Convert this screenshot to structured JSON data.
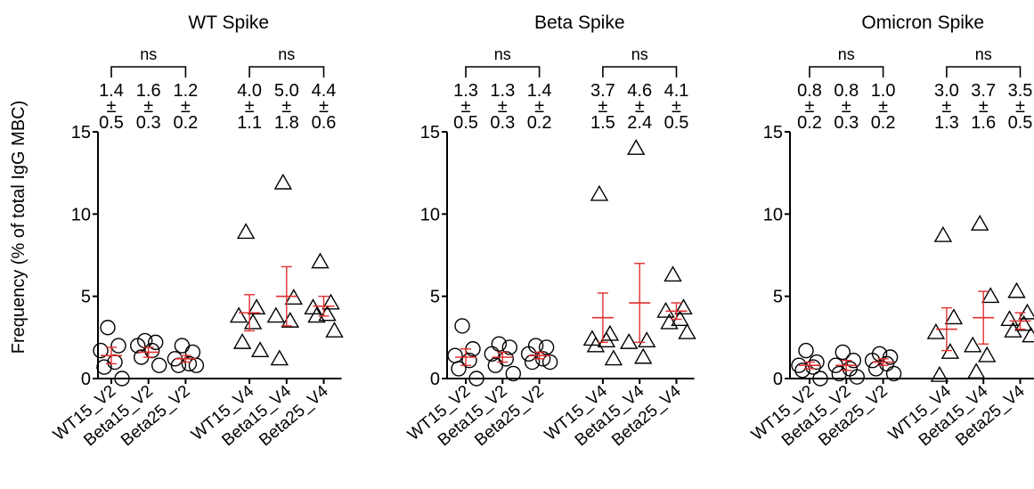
{
  "figure": {
    "ylabel": "Frequency (% of total IgG MBC)"
  },
  "chart_data": [
    {
      "type": "scatter",
      "title": "WT Spike",
      "ylabel": "Frequency (% of total IgG MBC)",
      "ylim": [
        0,
        15
      ],
      "yticks": [
        0,
        5,
        10,
        15
      ],
      "categories": [
        "WT15_V2",
        "Beta15_V2",
        "Beta25_V2",
        "WT15_V4",
        "Beta15_V4",
        "Beta25_V4"
      ],
      "groups": [
        {
          "label": "WT15_V2",
          "marker": "circle",
          "mean": 1.4,
          "sd": 0.5,
          "mean_label": "1.4",
          "sd_label": "0.5",
          "values": [
            3.1,
            2.0,
            1.7,
            1.0,
            0.7,
            0.0
          ]
        },
        {
          "label": "Beta15_V2",
          "marker": "circle",
          "mean": 1.6,
          "sd": 0.3,
          "mean_label": "1.6",
          "sd_label": "0.3",
          "values": [
            2.3,
            2.2,
            2.0,
            1.7,
            1.3,
            0.8
          ]
        },
        {
          "label": "Beta25_V2",
          "marker": "circle",
          "mean": 1.2,
          "sd": 0.2,
          "mean_label": "1.2",
          "sd_label": "0.2",
          "values": [
            2.0,
            1.6,
            1.2,
            0.9,
            0.8,
            0.8
          ]
        },
        {
          "label": "WT15_V4",
          "marker": "triangle",
          "mean": 4.0,
          "sd": 1.1,
          "mean_label": "4.0",
          "sd_label": "1.1",
          "values": [
            8.9,
            4.3,
            3.8,
            3.4,
            2.2,
            1.7
          ]
        },
        {
          "label": "Beta15_V4",
          "marker": "triangle",
          "mean": 5.0,
          "sd": 1.8,
          "mean_label": "5.0",
          "sd_label": "1.8",
          "values": [
            11.9,
            4.9,
            3.8,
            3.5,
            1.2
          ]
        },
        {
          "label": "Beta25_V4",
          "marker": "triangle",
          "mean": 4.4,
          "sd": 0.6,
          "mean_label": "4.4",
          "sd_label": "0.6",
          "values": [
            7.1,
            4.6,
            4.3,
            3.9,
            3.8,
            2.9
          ]
        }
      ],
      "comparisons": [
        {
          "from": 0,
          "to": 2,
          "label": "ns"
        },
        {
          "from": 3,
          "to": 5,
          "label": "ns"
        }
      ]
    },
    {
      "type": "scatter",
      "title": "Beta Spike",
      "ylim": [
        0,
        15
      ],
      "yticks": [
        0,
        5,
        10,
        15
      ],
      "categories": [
        "WT15_V2",
        "Beta15_V2",
        "Beta25_V2",
        "WT15_V4",
        "Beta15_V4",
        "Beta25_V4"
      ],
      "groups": [
        {
          "label": "WT15_V2",
          "marker": "circle",
          "mean": 1.3,
          "sd": 0.5,
          "mean_label": "1.3",
          "sd_label": "0.5",
          "values": [
            3.2,
            1.8,
            1.4,
            1.1,
            0.6,
            0.0
          ]
        },
        {
          "label": "Beta15_V2",
          "marker": "circle",
          "mean": 1.3,
          "sd": 0.3,
          "mean_label": "1.3",
          "sd_label": "0.3",
          "values": [
            2.1,
            1.9,
            1.5,
            1.2,
            0.8,
            0.3
          ]
        },
        {
          "label": "Beta25_V2",
          "marker": "circle",
          "mean": 1.4,
          "sd": 0.2,
          "mean_label": "1.4",
          "sd_label": "0.2",
          "values": [
            2.0,
            1.9,
            1.5,
            1.2,
            1.0,
            1.0
          ]
        },
        {
          "label": "WT15_V4",
          "marker": "triangle",
          "mean": 3.7,
          "sd": 1.5,
          "mean_label": "3.7",
          "sd_label": "1.5",
          "values": [
            11.2,
            2.7,
            2.4,
            2.3,
            2.0,
            1.2
          ]
        },
        {
          "label": "Beta15_V4",
          "marker": "triangle",
          "mean": 4.6,
          "sd": 2.4,
          "mean_label": "4.6",
          "sd_label": "2.4",
          "values": [
            14.0,
            2.3,
            2.2,
            1.3
          ]
        },
        {
          "label": "Beta25_V4",
          "marker": "triangle",
          "mean": 4.1,
          "sd": 0.5,
          "mean_label": "4.1",
          "sd_label": "0.5",
          "values": [
            6.3,
            4.3,
            4.1,
            3.6,
            3.4,
            2.8
          ]
        }
      ],
      "comparisons": [
        {
          "from": 0,
          "to": 2,
          "label": "ns"
        },
        {
          "from": 3,
          "to": 5,
          "label": "ns"
        }
      ]
    },
    {
      "type": "scatter",
      "title": "Omicron Spike",
      "ylim": [
        0,
        15
      ],
      "yticks": [
        0,
        5,
        10,
        15
      ],
      "categories": [
        "WT15_V2",
        "Beta15_V2",
        "Beta25_V2",
        "WT15_V4",
        "Beta15_V4",
        "Beta25_V4"
      ],
      "groups": [
        {
          "label": "WT15_V2",
          "marker": "circle",
          "mean": 0.8,
          "sd": 0.2,
          "mean_label": "0.8",
          "sd_label": "0.2",
          "values": [
            1.7,
            1.0,
            0.8,
            0.7,
            0.5,
            0.0
          ]
        },
        {
          "label": "Beta15_V2",
          "marker": "circle",
          "mean": 0.8,
          "sd": 0.3,
          "mean_label": "0.8",
          "sd_label": "0.3",
          "values": [
            1.6,
            1.1,
            0.8,
            0.6,
            0.3,
            0.1
          ]
        },
        {
          "label": "Beta25_V2",
          "marker": "circle",
          "mean": 1.0,
          "sd": 0.2,
          "mean_label": "1.0",
          "sd_label": "0.2",
          "values": [
            1.5,
            1.3,
            1.1,
            0.9,
            0.6,
            0.3
          ]
        },
        {
          "label": "WT15_V4",
          "marker": "triangle",
          "mean": 3.0,
          "sd": 1.3,
          "mean_label": "3.0",
          "sd_label": "1.3",
          "values": [
            8.7,
            3.7,
            2.8,
            1.6,
            0.2
          ]
        },
        {
          "label": "Beta15_V4",
          "marker": "triangle",
          "mean": 3.7,
          "sd": 1.6,
          "mean_label": "3.7",
          "sd_label": "1.6",
          "values": [
            9.4,
            5.0,
            2.0,
            1.4,
            0.4
          ]
        },
        {
          "label": "Beta25_V4",
          "marker": "triangle",
          "mean": 3.5,
          "sd": 0.5,
          "mean_label": "3.5",
          "sd_label": "0.5",
          "values": [
            5.3,
            4.0,
            3.6,
            3.3,
            2.9,
            2.6
          ]
        }
      ],
      "comparisons": [
        {
          "from": 0,
          "to": 2,
          "label": "ns"
        },
        {
          "from": 3,
          "to": 5,
          "label": "ns"
        }
      ]
    }
  ]
}
